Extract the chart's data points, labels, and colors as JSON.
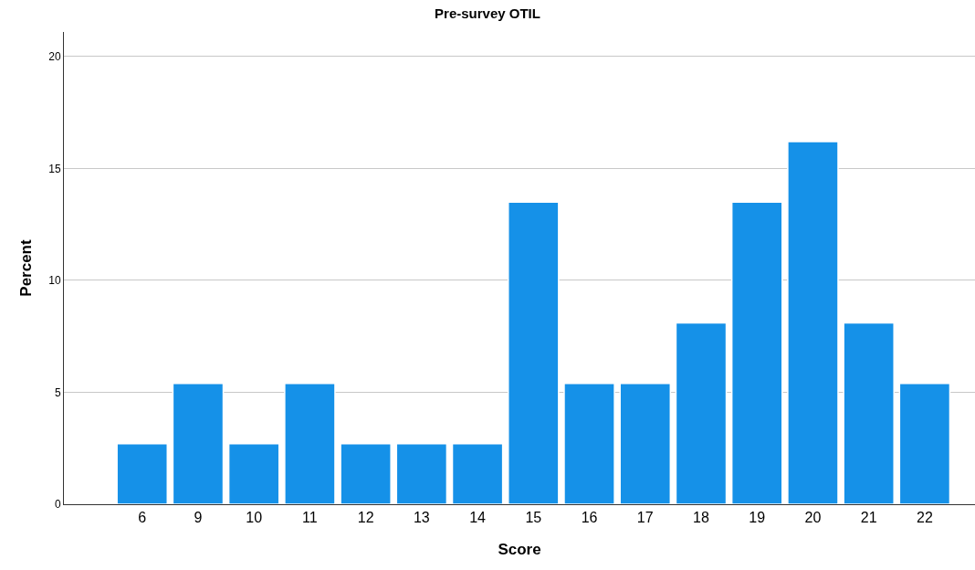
{
  "chart_data": {
    "type": "bar",
    "title": "Pre-survey OTIL",
    "xlabel": "Score",
    "ylabel": "Percent",
    "categories": [
      "6",
      "9",
      "10",
      "11",
      "12",
      "13",
      "14",
      "15",
      "16",
      "17",
      "18",
      "19",
      "20",
      "21",
      "22"
    ],
    "values": [
      2.7,
      5.4,
      2.7,
      5.4,
      2.7,
      2.7,
      2.7,
      13.5,
      5.4,
      5.4,
      8.1,
      13.5,
      16.2,
      8.1,
      5.4
    ],
    "color": "#1591e8",
    "ylim": [
      0,
      21.1
    ],
    "yticks": [
      0,
      5,
      10,
      15,
      20
    ],
    "grid": "y"
  }
}
